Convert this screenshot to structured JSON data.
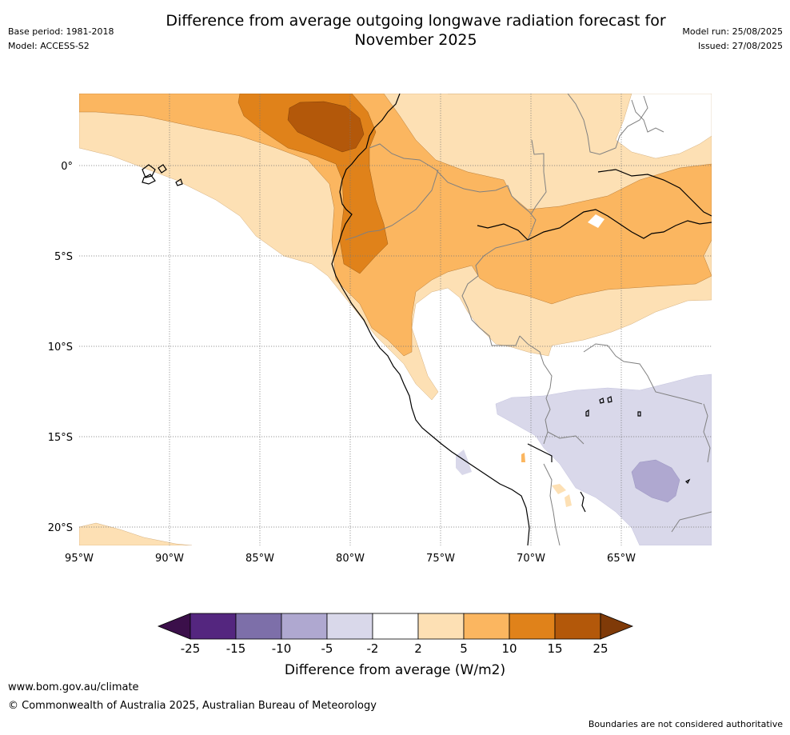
{
  "header": {
    "title_line1": "Difference from average outgoing longwave radiation forecast for",
    "title_line2": "November 2025",
    "base_period": "Base period: 1981-2018",
    "model": "Model: ACCESS-S2",
    "model_run": "Model run: 25/08/2025",
    "issued": "Issued: 27/08/2025"
  },
  "map": {
    "lat_labels": [
      "0°",
      "5°S",
      "10°S",
      "15°S",
      "20°S"
    ],
    "lon_labels": [
      "95°W",
      "90°W",
      "85°W",
      "80°W",
      "75°W",
      "70°W",
      "65°W"
    ],
    "colors": {
      "neg25": "#3b0f4a",
      "neg15": "#54267f",
      "neg10": "#7d6fa9",
      "neg5": "#afa8d0",
      "neg2": "#d9d8ea",
      "zero": "#ffffff",
      "pos2": "#fde0b4",
      "pos5": "#fbb660",
      "pos10": "#e0821a",
      "pos15": "#b3580a",
      "pos25": "#7f3a08"
    }
  },
  "legend": {
    "ticks": [
      "-25",
      "-15",
      "-10",
      "-5",
      "-2",
      "2",
      "5",
      "10",
      "15",
      "25"
    ],
    "label": "Difference from average (W/m2)"
  },
  "footer": {
    "url": "www.bom.gov.au/climate",
    "copyright": "© Commonwealth of Australia 2025, Australian Bureau of Meteorology",
    "disclaimer": "Boundaries are not considered authoritative"
  }
}
